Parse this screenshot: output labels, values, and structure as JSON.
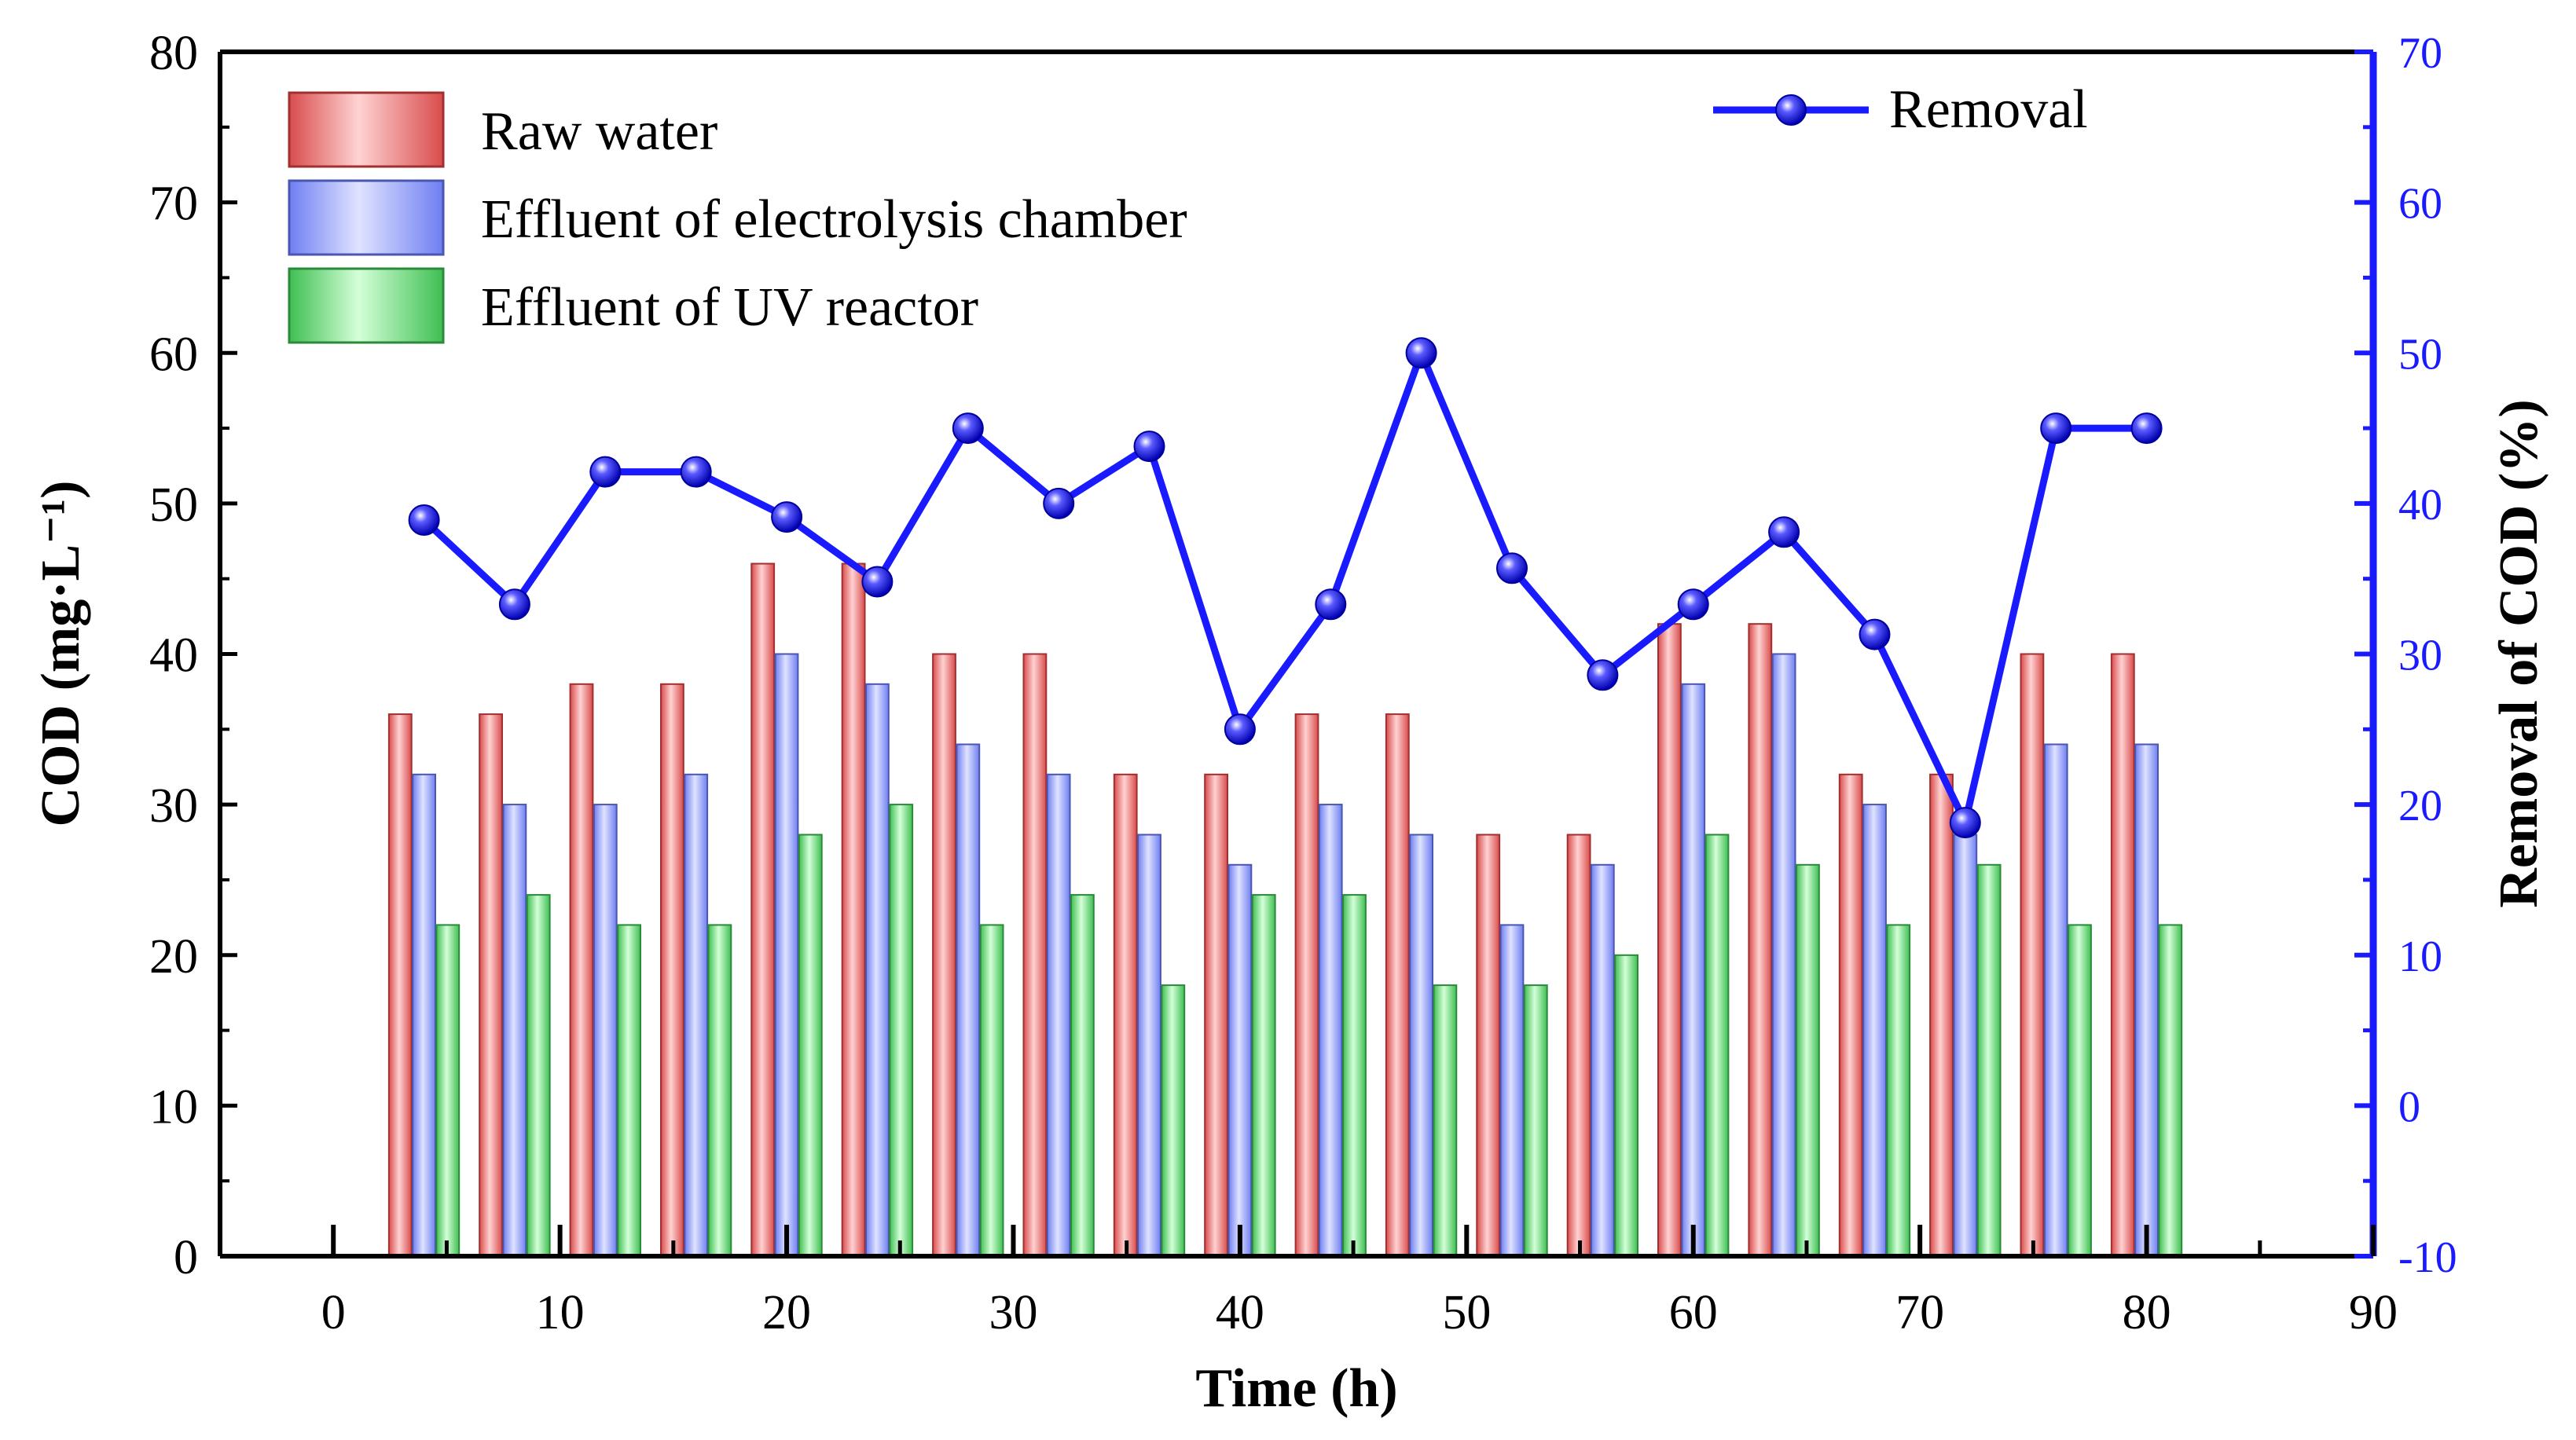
{
  "chart_data": {
    "type": "bar",
    "xlabel": "Time (h)",
    "ylabel": "COD (mg·L⁻¹)",
    "y2label": "Removal of COD (%)",
    "xlim": [
      -5,
      90
    ],
    "ylim": [
      0,
      80
    ],
    "y2lim": [
      -10,
      70
    ],
    "xticks": [
      "0",
      "10",
      "20",
      "30",
      "40",
      "50",
      "60",
      "70",
      "80",
      "90"
    ],
    "yticks": [
      "0",
      "10",
      "20",
      "30",
      "40",
      "50",
      "60",
      "70",
      "80"
    ],
    "y2ticks": [
      "-10",
      "0",
      "10",
      "20",
      "30",
      "40",
      "50",
      "60",
      "70"
    ],
    "x": [
      4,
      8,
      12,
      16,
      20,
      24,
      28,
      32,
      36,
      40,
      44,
      48,
      52,
      56,
      60,
      64,
      68,
      72,
      76,
      80
    ],
    "series": [
      {
        "name": "Raw water",
        "type": "bar",
        "axis": "left",
        "color": "#e06666",
        "values": [
          36,
          36,
          38,
          38,
          46,
          46,
          40,
          40,
          32,
          32,
          36,
          36,
          28,
          28,
          42,
          42,
          32,
          32,
          40,
          40
        ]
      },
      {
        "name": "Effluent of electrolysis chamber",
        "type": "bar",
        "axis": "left",
        "color": "#7f8fff",
        "values": [
          32,
          30,
          30,
          32,
          40,
          38,
          34,
          32,
          28,
          26,
          30,
          28,
          22,
          26,
          38,
          40,
          30,
          28,
          34,
          34
        ]
      },
      {
        "name": "Effluent of UV reactor",
        "type": "bar",
        "axis": "left",
        "color": "#5fd35f",
        "values": [
          22,
          24,
          22,
          22,
          28,
          30,
          22,
          24,
          18,
          24,
          24,
          18,
          18,
          20,
          28,
          26,
          22,
          26,
          22,
          22
        ]
      },
      {
        "name": "Removal",
        "type": "line",
        "axis": "right",
        "color": "#1a1aff",
        "values": [
          38.9,
          33.3,
          42.1,
          42.1,
          39.1,
          34.8,
          45.0,
          40.0,
          43.8,
          25.0,
          33.3,
          50.0,
          35.7,
          28.6,
          33.3,
          38.1,
          31.3,
          18.8,
          45.0,
          45.0
        ]
      }
    ],
    "legend_placement": "top-left (bars), top-right (line)",
    "grid": false
  }
}
